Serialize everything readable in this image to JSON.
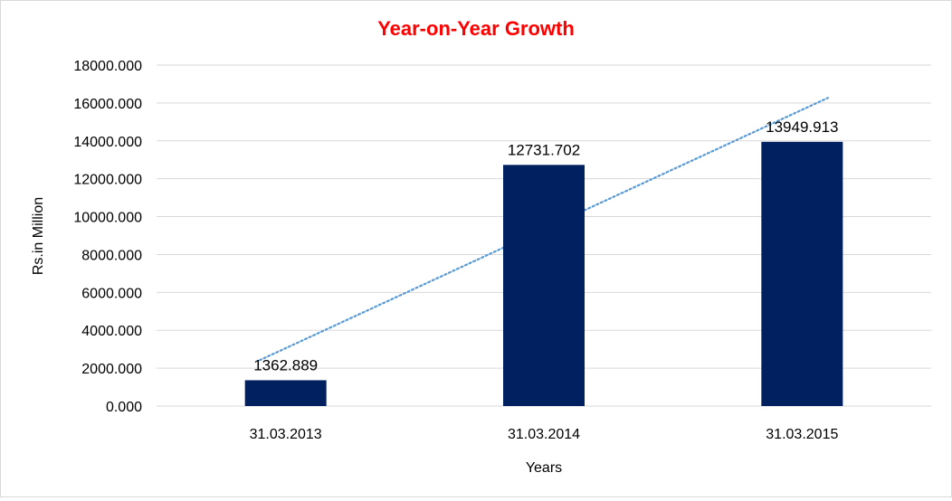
{
  "chart_data": {
    "type": "bar",
    "title": "Year-on-Year Growth",
    "xlabel": "Years",
    "ylabel": "Rs.in Million",
    "categories": [
      "31.03.2013",
      "31.03.2014",
      "31.03.2015"
    ],
    "values": [
      1362.889,
      12731.702,
      13949.913
    ],
    "data_labels": [
      "1362.889",
      "12731.702",
      "13949.913"
    ],
    "ylim": [
      0,
      18000
    ],
    "yticks": [
      0,
      2000,
      4000,
      6000,
      8000,
      10000,
      12000,
      14000,
      16000,
      18000
    ],
    "ytick_labels": [
      "0.000",
      "2000.000",
      "4000.000",
      "6000.000",
      "8000.000",
      "10000.000",
      "12000.000",
      "14000.000",
      "16000.000",
      "18000.000"
    ],
    "grid": true,
    "legend": "none",
    "trendline": {
      "type": "linear",
      "style": "dotted"
    },
    "colors": {
      "bar": "#002060",
      "title": "#ff0000",
      "grid": "#d9d9d9",
      "trendline": "#5b9bd5"
    }
  }
}
